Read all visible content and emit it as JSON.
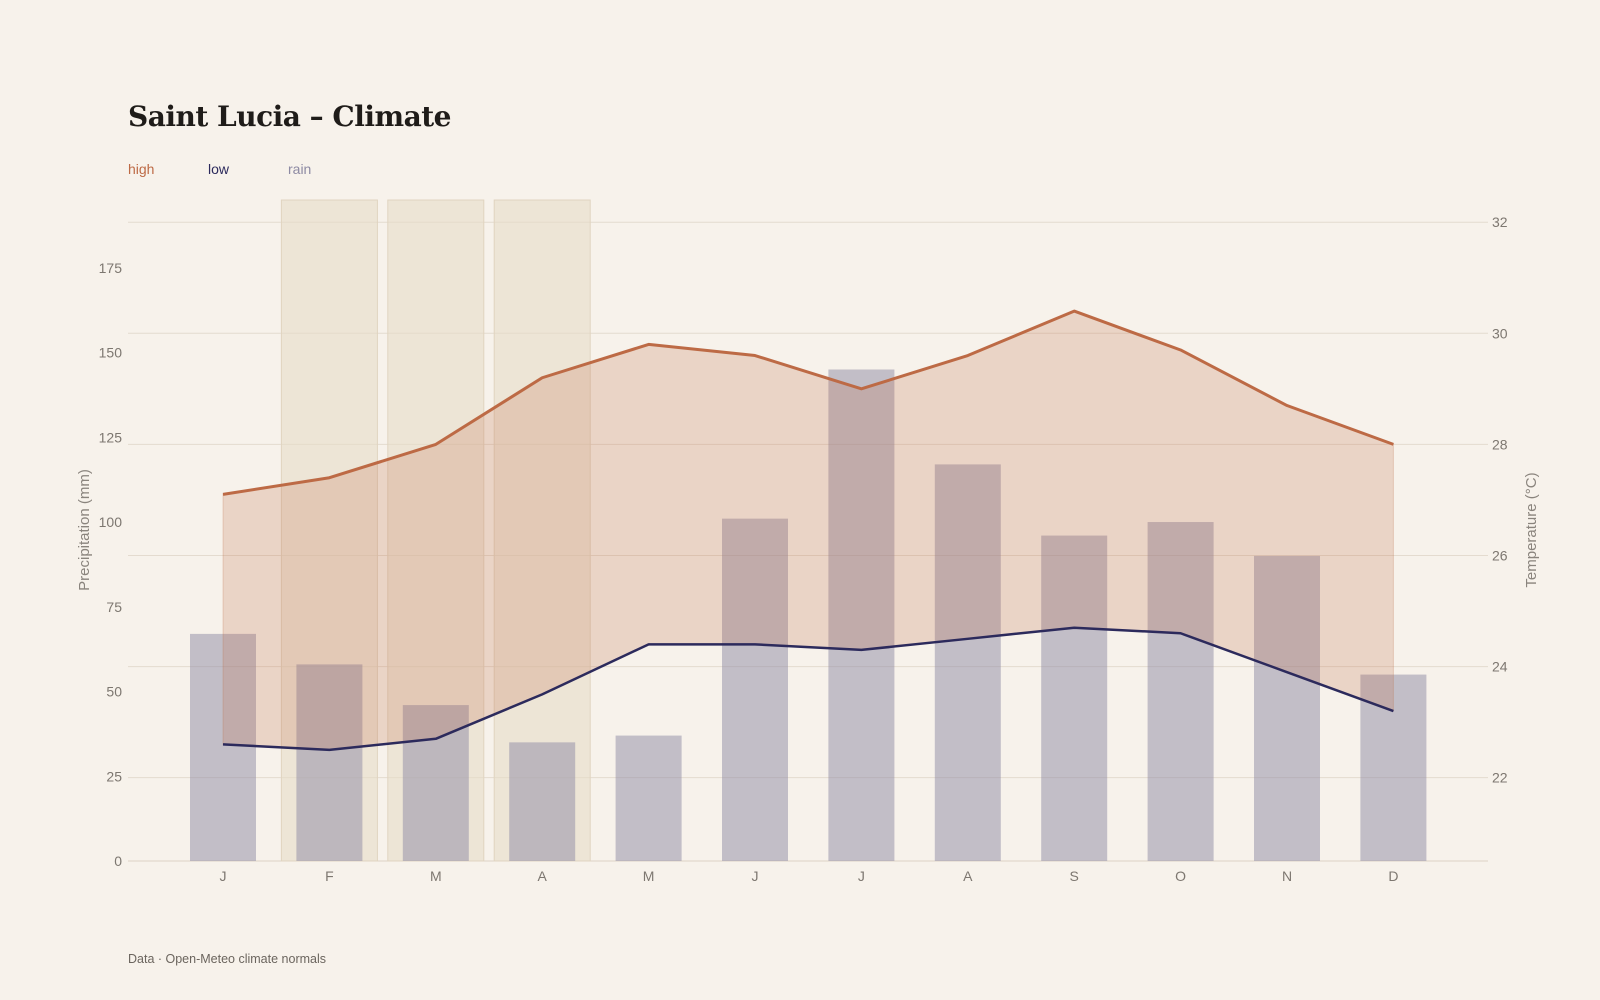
{
  "title": "Saint Lucia – Climate",
  "source": "Data · Open-Meteo climate normals",
  "colors": {
    "background": "#f7f2eb",
    "high": "#bd6a45",
    "low": "#2c2a5c",
    "rain": "#8d8aa3",
    "highlight": "#e6dcc8"
  },
  "chart_data": {
    "type": "bar+line",
    "title": "Saint Lucia – Climate",
    "categories": [
      "J",
      "F",
      "M",
      "A",
      "M",
      "J",
      "J",
      "A",
      "S",
      "O",
      "N",
      "D"
    ],
    "highlighted_months": [
      "F",
      "M",
      "A"
    ],
    "series": [
      {
        "name": "rain",
        "type": "bar",
        "axis": "left",
        "values": [
          67,
          58,
          46,
          35,
          37,
          101,
          145,
          117,
          96,
          100,
          90,
          55
        ]
      },
      {
        "name": "high",
        "type": "line",
        "axis": "right",
        "values": [
          27.1,
          27.4,
          28.0,
          29.2,
          29.8,
          29.6,
          29.0,
          29.6,
          30.4,
          29.7,
          28.7,
          28.0
        ]
      },
      {
        "name": "low",
        "type": "line",
        "axis": "right",
        "values": [
          22.6,
          22.5,
          22.7,
          23.5,
          24.4,
          24.4,
          24.3,
          24.5,
          24.7,
          24.6,
          23.9,
          23.2
        ]
      }
    ],
    "y_left": {
      "label": "Precipitation (mm)",
      "ylim": [
        0,
        195
      ],
      "ticks": [
        0,
        25,
        50,
        75,
        100,
        125,
        150,
        175
      ]
    },
    "y_right": {
      "label": "Temperature (°C)",
      "ylim": [
        20.5,
        32.4
      ],
      "ticks": [
        22,
        24,
        26,
        28,
        30,
        32
      ]
    },
    "legend": [
      "high",
      "low",
      "rain"
    ],
    "legend_position": "top-left",
    "grid": true
  }
}
